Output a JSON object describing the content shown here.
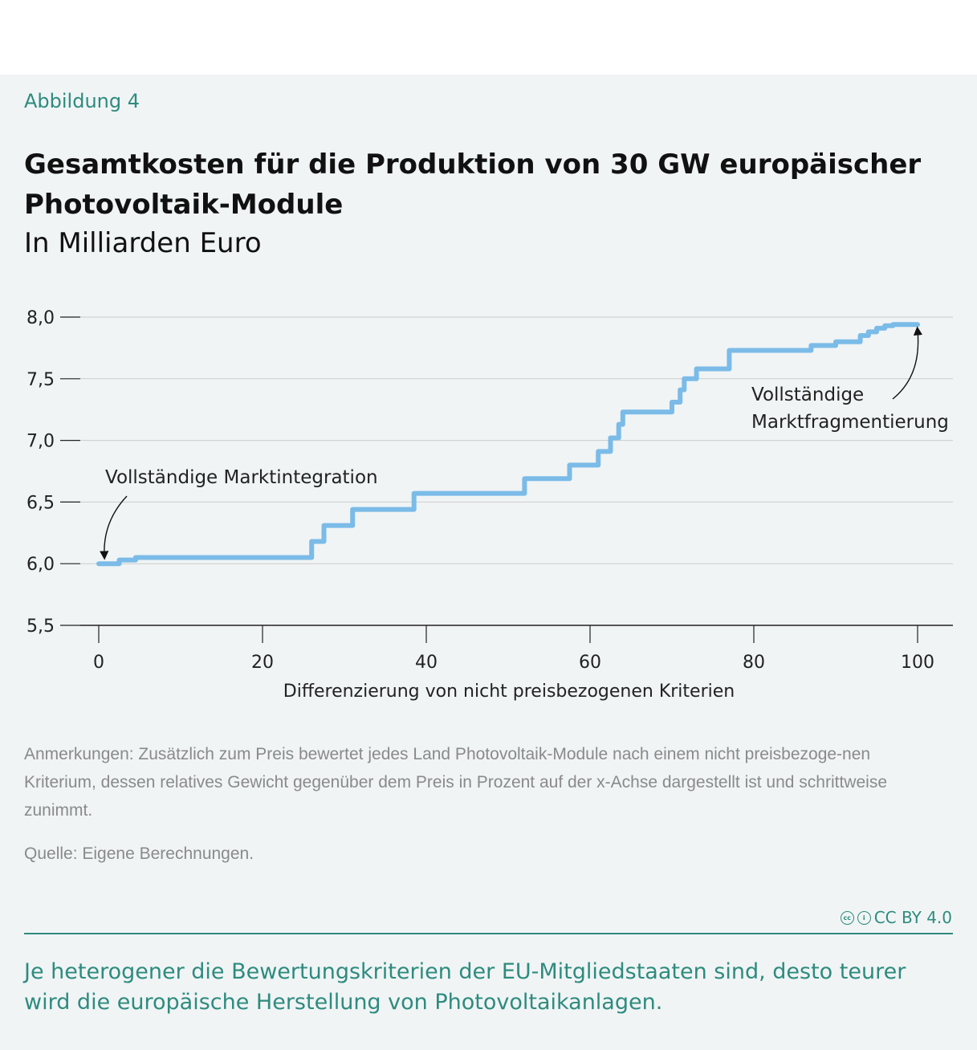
{
  "figure_label": "Abbildung 4",
  "title": "Gesamtkosten für die Produktion von 30 GW europäischer Photovoltaik-Module",
  "subtitle": "In Milliarden Euro",
  "notes": "Anmerkungen: Zusätzlich zum Preis bewertet jedes Land Photovoltaik-Module nach einem nicht preisbezoge-nen Kriterium, dessen relatives Gewicht gegenüber dem Preis in Prozent auf der x-Achse dargestellt ist und schrittweise zunimmt.",
  "source": "Quelle: Eigene Berechnungen.",
  "license": "CC BY 4.0",
  "summary": "Je heterogener die Bewertungskriterien der EU-Mitgliedstaaten sind, desto teurer wird die europäische Herstellung von Photovoltaikanlagen.",
  "colors": {
    "accent": "#2e8b7e",
    "line": "#7bbbe8",
    "background": "#f0f4f5",
    "grid": "#cccccc"
  },
  "chart_data": {
    "type": "line",
    "step": true,
    "xlabel": "Differenzierung von nicht preisbezogenen Kriterien",
    "ylabel": "",
    "xlim": [
      0,
      100
    ],
    "ylim": [
      5.5,
      8.0
    ],
    "xticks": [
      0,
      20,
      40,
      60,
      80,
      100
    ],
    "xtick_labels": [
      "0",
      "20",
      "40",
      "60",
      "80",
      "100"
    ],
    "yticks": [
      5.5,
      6.0,
      6.5,
      7.0,
      7.5,
      8.0
    ],
    "ytick_labels": [
      "5,5",
      "6,0",
      "6,5",
      "7,0",
      "7,5",
      "8,0"
    ],
    "grid": true,
    "series": [
      {
        "x": [
          0,
          2.5,
          4.5,
          26,
          27.5,
          31,
          38.5,
          52,
          57.5,
          61,
          62.5,
          63.5,
          64,
          70,
          71,
          71.5,
          73,
          77,
          87,
          90,
          93,
          94,
          95,
          96,
          97,
          100
        ],
        "y": [
          6.0,
          6.03,
          6.05,
          6.18,
          6.31,
          6.44,
          6.57,
          6.69,
          6.8,
          6.91,
          7.02,
          7.13,
          7.23,
          7.31,
          7.41,
          7.5,
          7.58,
          7.73,
          7.77,
          7.8,
          7.85,
          7.88,
          7.91,
          7.93,
          7.94,
          7.94
        ]
      }
    ],
    "annotations": [
      {
        "label": "Vollständige Marktintegration",
        "x": 0,
        "y": 6.0
      },
      {
        "label_line1": "Vollständige",
        "label_line2": "Marktfragmentierung",
        "x": 100,
        "y": 7.94
      }
    ]
  }
}
